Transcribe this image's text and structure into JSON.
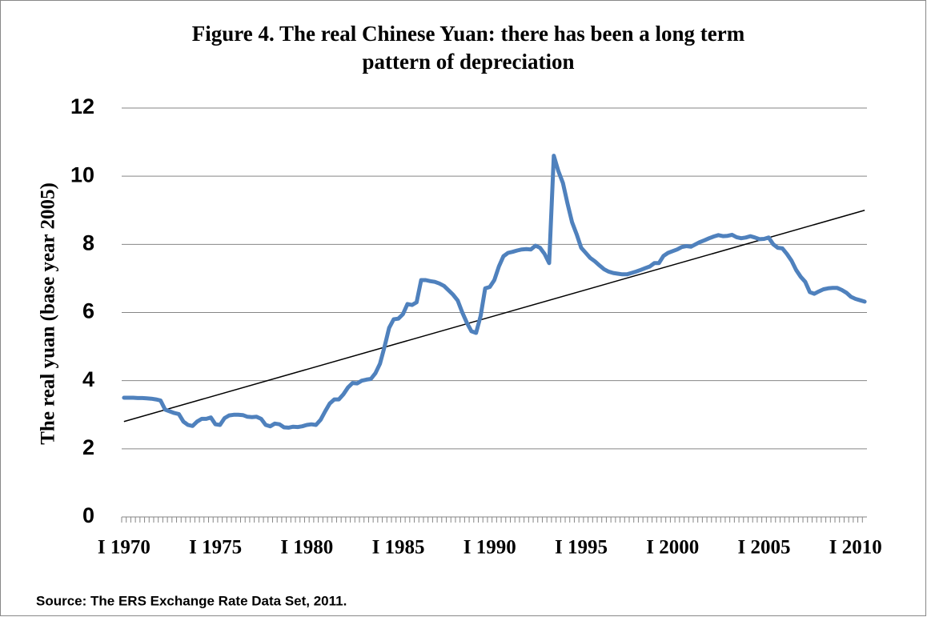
{
  "chart_data": {
    "type": "line",
    "title": [
      "Figure 4. The real Chinese Yuan: there has been a long term",
      "pattern of depreciation"
    ],
    "y_label": "The real yuan (base year 2005)",
    "source": "Source:  The ERS Exchange Rate Data Set, 2011.",
    "categories": [
      "I 1970",
      null,
      null,
      null,
      null,
      null,
      null,
      null,
      null,
      null,
      null,
      null,
      null,
      null,
      null,
      null,
      null,
      null,
      null,
      null,
      "I 1975",
      null,
      null,
      null,
      null,
      null,
      null,
      null,
      null,
      null,
      null,
      null,
      null,
      null,
      null,
      null,
      null,
      null,
      null,
      null,
      "I 1980",
      null,
      null,
      null,
      null,
      null,
      null,
      null,
      null,
      null,
      null,
      null,
      null,
      null,
      null,
      null,
      null,
      null,
      null,
      null,
      "I 1985",
      null,
      null,
      null,
      null,
      null,
      null,
      null,
      null,
      null,
      null,
      null,
      null,
      null,
      null,
      null,
      null,
      null,
      null,
      null,
      "I 1990",
      null,
      null,
      null,
      null,
      null,
      null,
      null,
      null,
      null,
      null,
      null,
      null,
      null,
      null,
      null,
      null,
      null,
      null,
      null,
      "I 1995",
      null,
      null,
      null,
      null,
      null,
      null,
      null,
      null,
      null,
      null,
      null,
      null,
      null,
      null,
      null,
      null,
      null,
      null,
      null,
      "I 2000",
      null,
      null,
      null,
      null,
      null,
      null,
      null,
      null,
      null,
      null,
      null,
      null,
      null,
      null,
      null,
      null,
      null,
      null,
      null,
      "I 2005",
      null,
      null,
      null,
      null,
      null,
      null,
      null,
      null,
      null,
      null,
      null,
      null,
      null,
      null,
      null,
      null,
      null,
      null,
      null,
      "I 2010",
      null,
      null
    ],
    "series": [
      {
        "color": "#4f81bd",
        "values": [
          3.5,
          3.5,
          3.5,
          3.49,
          3.49,
          3.48,
          3.47,
          3.45,
          3.42,
          3.15,
          3.1,
          3.05,
          3.02,
          2.8,
          2.7,
          2.67,
          2.8,
          2.88,
          2.88,
          2.92,
          2.72,
          2.7,
          2.9,
          2.98,
          3.0,
          3.0,
          2.99,
          2.94,
          2.93,
          2.94,
          2.88,
          2.7,
          2.66,
          2.74,
          2.72,
          2.63,
          2.62,
          2.65,
          2.64,
          2.66,
          2.7,
          2.72,
          2.7,
          2.85,
          3.1,
          3.33,
          3.45,
          3.45,
          3.6,
          3.8,
          3.93,
          3.92,
          4.0,
          4.03,
          4.05,
          4.22,
          4.5,
          5.0,
          5.55,
          5.8,
          5.82,
          5.95,
          6.25,
          6.22,
          6.3,
          6.95,
          6.95,
          6.92,
          6.9,
          6.85,
          6.78,
          6.65,
          6.52,
          6.35,
          6.0,
          5.7,
          5.45,
          5.4,
          5.9,
          6.71,
          6.75,
          6.95,
          7.35,
          7.65,
          7.75,
          7.78,
          7.82,
          7.85,
          7.86,
          7.85,
          7.96,
          7.9,
          7.72,
          7.45,
          10.6,
          10.15,
          9.8,
          9.2,
          8.65,
          8.3,
          7.9,
          7.75,
          7.6,
          7.5,
          7.38,
          7.27,
          7.2,
          7.16,
          7.14,
          7.12,
          7.12,
          7.16,
          7.2,
          7.25,
          7.3,
          7.35,
          7.45,
          7.45,
          7.66,
          7.75,
          7.8,
          7.85,
          7.92,
          7.95,
          7.93,
          8.0,
          8.07,
          8.12,
          8.18,
          8.23,
          8.27,
          8.24,
          8.25,
          8.28,
          8.21,
          8.18,
          8.2,
          8.24,
          8.2,
          8.15,
          8.16,
          8.2,
          8.0,
          7.9,
          7.88,
          7.72,
          7.52,
          7.25,
          7.05,
          6.9,
          6.6,
          6.55,
          6.62,
          6.68,
          6.71,
          6.72,
          6.72,
          6.66,
          6.58,
          6.46,
          6.4,
          6.36,
          6.32
        ]
      }
    ],
    "trend_line": {
      "values": [
        2.8,
        9.0
      ],
      "color": "#000000"
    },
    "ylim": [
      0,
      12
    ],
    "yticks": [
      0,
      2,
      4,
      6,
      8,
      10,
      12
    ],
    "grid": true
  }
}
